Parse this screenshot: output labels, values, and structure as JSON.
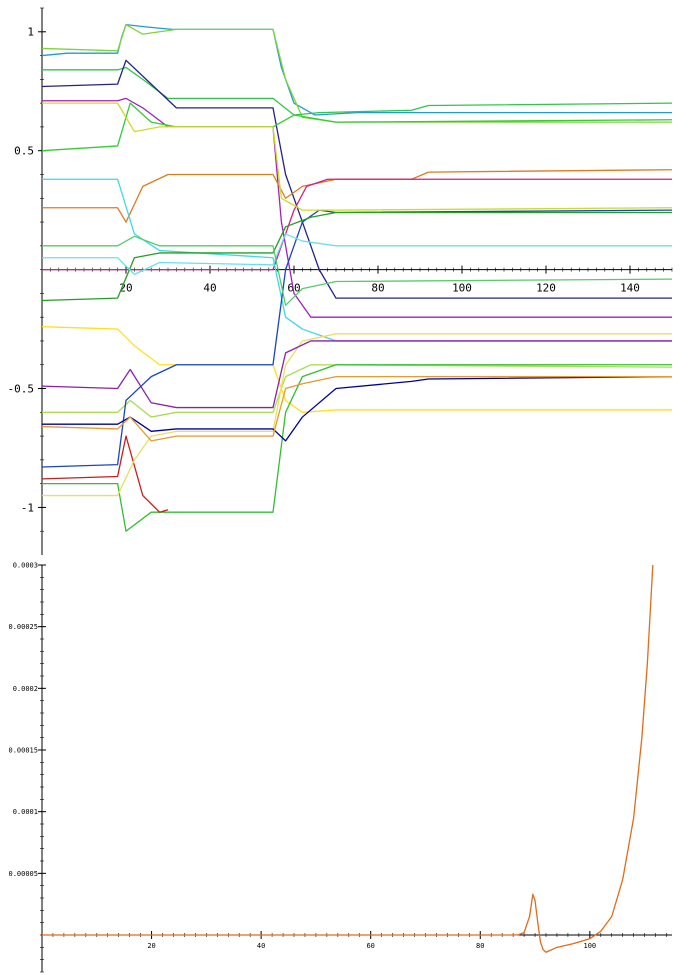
{
  "chart_data": [
    {
      "type": "line",
      "title": "",
      "xlabel": "",
      "ylabel": "",
      "xlim": [
        0,
        150
      ],
      "ylim": [
        -1.2,
        1.1
      ],
      "x_ticks": [
        20,
        40,
        60,
        80,
        100,
        120,
        140
      ],
      "x_tick_labels": [
        "20",
        "40",
        "60",
        "80",
        "100",
        "120",
        "140"
      ],
      "y_ticks": [
        1,
        0.5,
        -0.5,
        -1
      ],
      "y_tick_labels": [
        "1",
        "0.5",
        "-0.5",
        "-1"
      ],
      "grid": false,
      "legend": "none",
      "series": [
        {
          "color": "#1f9bd6",
          "values": [
            [
              0,
              0.9
            ],
            [
              6,
              0.91
            ],
            [
              18,
              0.91
            ],
            [
              19,
              0.98
            ],
            [
              20,
              1.03
            ],
            [
              25,
              1.02
            ],
            [
              31,
              1.01
            ],
            [
              55,
              1.01
            ],
            [
              57,
              0.85
            ],
            [
              60,
              0.7
            ],
            [
              65,
              0.65
            ],
            [
              75,
              0.66
            ],
            [
              150,
              0.66
            ]
          ]
        },
        {
          "color": "#7cd63a",
          "values": [
            [
              0,
              0.93
            ],
            [
              18,
              0.92
            ],
            [
              20,
              1.03
            ],
            [
              24,
              0.99
            ],
            [
              32,
              1.01
            ],
            [
              55,
              1.01
            ],
            [
              58,
              0.8
            ],
            [
              62,
              0.64
            ],
            [
              70,
              0.62
            ],
            [
              150,
              0.62
            ]
          ]
        },
        {
          "color": "#2ec74a",
          "values": [
            [
              0,
              0.84
            ],
            [
              18,
              0.84
            ],
            [
              20,
              0.85
            ],
            [
              24,
              0.8
            ],
            [
              30,
              0.72
            ],
            [
              55,
              0.72
            ],
            [
              60,
              0.65
            ],
            [
              66,
              0.66
            ],
            [
              88,
              0.67
            ],
            [
              92,
              0.69
            ],
            [
              150,
              0.7
            ]
          ]
        },
        {
          "color": "#22228a",
          "values": [
            [
              0,
              0.77
            ],
            [
              18,
              0.78
            ],
            [
              20,
              0.88
            ],
            [
              26,
              0.78
            ],
            [
              32,
              0.68
            ],
            [
              55,
              0.68
            ],
            [
              58,
              0.4
            ],
            [
              62,
              0.2
            ],
            [
              66,
              0.0
            ],
            [
              70,
              -0.12
            ],
            [
              150,
              -0.12
            ]
          ]
        },
        {
          "color": "#a020c0",
          "values": [
            [
              0,
              0.71
            ],
            [
              18,
              0.71
            ],
            [
              20,
              0.72
            ],
            [
              24,
              0.68
            ],
            [
              30,
              0.6
            ],
            [
              55,
              0.6
            ],
            [
              57,
              0.2
            ],
            [
              60,
              -0.1
            ],
            [
              64,
              -0.2
            ],
            [
              150,
              -0.2
            ]
          ]
        },
        {
          "color": "#33cc33",
          "values": [
            [
              0,
              0.5
            ],
            [
              18,
              0.52
            ],
            [
              21,
              0.7
            ],
            [
              26,
              0.62
            ],
            [
              32,
              0.6
            ],
            [
              55,
              0.6
            ],
            [
              60,
              0.65
            ],
            [
              70,
              0.62
            ],
            [
              150,
              0.63
            ]
          ]
        },
        {
          "color": "#e07b20",
          "values": [
            [
              0,
              0.26
            ],
            [
              18,
              0.26
            ],
            [
              20,
              0.2
            ],
            [
              24,
              0.35
            ],
            [
              30,
              0.4
            ],
            [
              55,
              0.4
            ],
            [
              58,
              0.3
            ],
            [
              62,
              0.35
            ],
            [
              70,
              0.38
            ],
            [
              88,
              0.38
            ],
            [
              92,
              0.41
            ],
            [
              150,
              0.42
            ]
          ]
        },
        {
          "color": "#d81a8a",
          "values": [
            [
              0,
              0.0
            ],
            [
              55,
              0.0
            ],
            [
              57,
              0.1
            ],
            [
              60,
              0.25
            ],
            [
              63,
              0.35
            ],
            [
              68,
              0.38
            ],
            [
              150,
              0.38
            ]
          ]
        },
        {
          "color": "#40d8e8",
          "values": [
            [
              0,
              0.38
            ],
            [
              18,
              0.38
            ],
            [
              22,
              0.15
            ],
            [
              28,
              0.08
            ],
            [
              55,
              0.05
            ],
            [
              58,
              -0.2
            ],
            [
              62,
              -0.25
            ],
            [
              70,
              -0.3
            ],
            [
              150,
              -0.3
            ]
          ]
        },
        {
          "color": "#ffe020",
          "values": [
            [
              0,
              -0.24
            ],
            [
              18,
              -0.25
            ],
            [
              22,
              -0.32
            ],
            [
              28,
              -0.4
            ],
            [
              55,
              -0.4
            ],
            [
              58,
              -0.55
            ],
            [
              62,
              -0.6
            ],
            [
              70,
              -0.59
            ],
            [
              150,
              -0.59
            ]
          ]
        },
        {
          "color": "#aadd55",
          "values": [
            [
              0,
              -0.6
            ],
            [
              18,
              -0.6
            ],
            [
              21,
              -0.55
            ],
            [
              26,
              -0.62
            ],
            [
              32,
              -0.6
            ],
            [
              55,
              -0.6
            ],
            [
              58,
              -0.45
            ],
            [
              64,
              -0.4
            ],
            [
              150,
              -0.41
            ]
          ]
        },
        {
          "color": "#1a44c8",
          "values": [
            [
              0,
              -0.83
            ],
            [
              18,
              -0.82
            ],
            [
              20,
              -0.55
            ],
            [
              26,
              -0.45
            ],
            [
              32,
              -0.4
            ],
            [
              55,
              -0.4
            ],
            [
              58,
              0.0
            ],
            [
              62,
              0.2
            ],
            [
              66,
              0.25
            ],
            [
              70,
              0.24
            ],
            [
              150,
              0.25
            ]
          ]
        },
        {
          "color": "#30c030",
          "values": [
            [
              0,
              -0.9
            ],
            [
              18,
              -0.9
            ],
            [
              20,
              -1.1
            ],
            [
              26,
              -1.02
            ],
            [
              32,
              -1.02
            ],
            [
              55,
              -1.02
            ],
            [
              58,
              -0.6
            ],
            [
              62,
              -0.45
            ],
            [
              70,
              -0.4
            ],
            [
              150,
              -0.4
            ]
          ]
        },
        {
          "color": "#c81e1e",
          "values": [
            [
              0,
              -0.88
            ],
            [
              18,
              -0.87
            ],
            [
              20,
              -0.7
            ],
            [
              24,
              -0.95
            ],
            [
              28,
              -1.02
            ],
            [
              30,
              -1.01
            ]
          ]
        },
        {
          "color": "#e8e060",
          "values": [
            [
              0,
              -0.95
            ],
            [
              18,
              -0.95
            ],
            [
              22,
              -0.8
            ],
            [
              26,
              -0.7
            ],
            [
              32,
              -0.68
            ],
            [
              55,
              -0.68
            ],
            [
              58,
              -0.4
            ],
            [
              62,
              -0.3
            ],
            [
              70,
              -0.27
            ],
            [
              150,
              -0.27
            ]
          ]
        },
        {
          "color": "#22a022",
          "values": [
            [
              0,
              -0.13
            ],
            [
              18,
              -0.12
            ],
            [
              22,
              0.05
            ],
            [
              28,
              0.07
            ],
            [
              55,
              0.07
            ],
            [
              58,
              0.18
            ],
            [
              64,
              0.22
            ],
            [
              70,
              0.24
            ],
            [
              150,
              0.24
            ]
          ]
        },
        {
          "color": "#8a20b0",
          "values": [
            [
              0,
              -0.49
            ],
            [
              18,
              -0.5
            ],
            [
              21,
              -0.42
            ],
            [
              26,
              -0.56
            ],
            [
              32,
              -0.58
            ],
            [
              55,
              -0.58
            ],
            [
              58,
              -0.35
            ],
            [
              64,
              -0.3
            ],
            [
              150,
              -0.3
            ]
          ]
        },
        {
          "color": "#0000a0",
          "values": [
            [
              0,
              -0.65
            ],
            [
              18,
              -0.65
            ],
            [
              21,
              -0.62
            ],
            [
              26,
              -0.68
            ],
            [
              32,
              -0.67
            ],
            [
              55,
              -0.67
            ],
            [
              58,
              -0.72
            ],
            [
              62,
              -0.62
            ],
            [
              70,
              -0.5
            ],
            [
              88,
              -0.47
            ],
            [
              92,
              -0.46
            ],
            [
              150,
              -0.45
            ]
          ]
        },
        {
          "color": "#e69a30",
          "values": [
            [
              0,
              -0.66
            ],
            [
              18,
              -0.67
            ],
            [
              21,
              -0.62
            ],
            [
              26,
              -0.72
            ],
            [
              32,
              -0.7
            ],
            [
              55,
              -0.7
            ],
            [
              58,
              -0.5
            ],
            [
              62,
              -0.48
            ],
            [
              70,
              -0.45
            ],
            [
              150,
              -0.45
            ]
          ]
        },
        {
          "color": "#ccdd22",
          "values": [
            [
              0,
              0.7
            ],
            [
              18,
              0.7
            ],
            [
              22,
              0.58
            ],
            [
              28,
              0.6
            ],
            [
              55,
              0.6
            ],
            [
              57,
              0.3
            ],
            [
              62,
              0.25
            ],
            [
              70,
              0.25
            ],
            [
              150,
              0.26
            ]
          ]
        },
        {
          "color": "#66e0ee",
          "values": [
            [
              0,
              0.05
            ],
            [
              18,
              0.05
            ],
            [
              22,
              -0.02
            ],
            [
              28,
              0.03
            ],
            [
              55,
              0.02
            ],
            [
              58,
              0.15
            ],
            [
              62,
              0.12
            ],
            [
              70,
              0.1
            ],
            [
              150,
              0.1
            ]
          ]
        },
        {
          "color": "#55cc66",
          "values": [
            [
              0,
              0.1
            ],
            [
              18,
              0.1
            ],
            [
              22,
              0.14
            ],
            [
              28,
              0.1
            ],
            [
              55,
              0.1
            ],
            [
              58,
              -0.15
            ],
            [
              62,
              -0.08
            ],
            [
              70,
              -0.05
            ],
            [
              150,
              -0.04
            ]
          ]
        }
      ]
    },
    {
      "type": "line",
      "title": "",
      "xlabel": "",
      "ylabel": "",
      "xlim": [
        0,
        115
      ],
      "ylim": [
        -3e-05,
        0.0003
      ],
      "x_ticks": [
        20,
        40,
        60,
        80,
        100
      ],
      "x_tick_labels": [
        "20",
        "40",
        "60",
        "80",
        "100"
      ],
      "y_ticks": [
        5e-05,
        0.0001,
        0.00015,
        0.0002,
        0.00025,
        0.0003
      ],
      "y_tick_labels": [
        "0.00005",
        "0.0001",
        "0.00015",
        "0.0002",
        "0.00025",
        "0.0003"
      ],
      "grid": false,
      "legend": "none",
      "series": [
        {
          "color": "#e26b1a",
          "values": [
            [
              0,
              0
            ],
            [
              86,
              0
            ],
            [
              87,
              2e-07
            ],
            [
              88,
              2e-06
            ],
            [
              89,
              1.5e-05
            ],
            [
              89.6,
              3.3e-05
            ],
            [
              90,
              2.8e-05
            ],
            [
              90.5,
              1e-05
            ],
            [
              91,
              -6e-06
            ],
            [
              91.5,
              -1.2e-05
            ],
            [
              92,
              -1.4e-05
            ],
            [
              94,
              -1e-05
            ],
            [
              97,
              -7e-06
            ],
            [
              100,
              -3e-06
            ],
            [
              102,
              3e-06
            ],
            [
              104,
              1.5e-05
            ],
            [
              106,
              4.5e-05
            ],
            [
              108,
              9.5e-05
            ],
            [
              109.5,
              0.00016
            ],
            [
              110.5,
              0.00022
            ],
            [
              111.5,
              0.0003
            ]
          ]
        }
      ]
    }
  ]
}
